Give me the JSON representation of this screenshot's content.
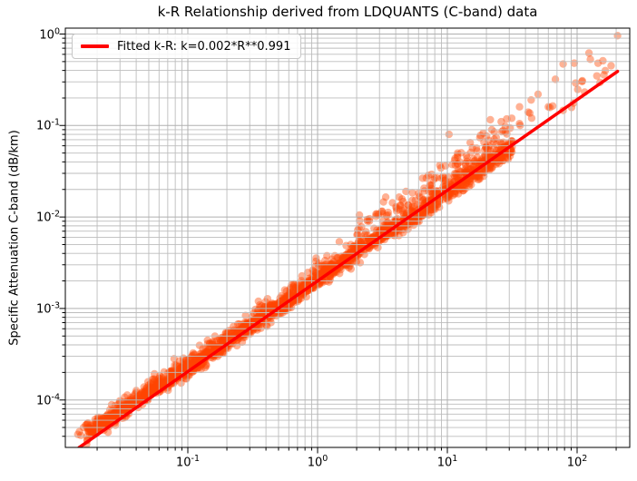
{
  "chart_data": {
    "type": "scatter",
    "title": "k-R Relationship derived from LDQUANTS (C-band) data",
    "xlabel": "",
    "ylabel": "Specific Attenuation C-band (dB/km)",
    "x_scale": "log",
    "y_scale": "log",
    "xlim": [
      0.0112,
      255
    ],
    "ylim": [
      3.03e-05,
      1.135
    ],
    "x_tick_exponents": [
      -1,
      0,
      1,
      2
    ],
    "y_tick_exponents": [
      0,
      -1,
      -2,
      -3,
      -4
    ],
    "grid": "both",
    "grid_major_color": "#b0b0b0",
    "grid_minor_color": "#bdbdbd",
    "frame_color": "#000000",
    "legend": {
      "label": "Fitted k-R: k=0.002*R**0.991",
      "line_color": "#ff0000",
      "position": "upper-left"
    },
    "fit": {
      "label_k": 0.002,
      "label_exponent": 0.991,
      "k": 0.002,
      "exponent": 0.991,
      "r_min": 0.0145,
      "r_max": 205,
      "color": "#ff0000",
      "linewidth": 3.5
    },
    "scatter": {
      "color": "#ff4500",
      "alpha": 0.42,
      "marker_radius": 4.2,
      "seed": 42,
      "n_points_approx": 2250,
      "band": {
        "n": 2200,
        "logx_min": -1.78,
        "logx_max": 1.5,
        "sigma": 0.048,
        "bias_left": 0.1,
        "bias_mid": 0.015,
        "bias_right": -0.022,
        "skew_prob_high": 0.3,
        "skew_prob_mid": 0.12,
        "skew_prob_low": 0.05,
        "skew_scale_high": 0.34,
        "skew_scale_low": 0.16,
        "residual_floor": -0.125
      },
      "tail": {
        "n": 22,
        "logx_min": 1.5,
        "logx_max": 2.33,
        "sigma": 0.07,
        "up_spread": 0.45
      },
      "low_points": [
        [
          0.0142,
          4.2e-05
        ],
        [
          0.0146,
          4.5e-05
        ],
        [
          0.015,
          4.1e-05
        ],
        [
          0.0157,
          5e-05
        ],
        [
          0.0163,
          5.3e-05
        ],
        [
          0.017,
          5.6e-05
        ]
      ],
      "outliers": [
        [
          205,
          0.96
        ],
        [
          158,
          0.51
        ],
        [
          95,
          0.48
        ],
        [
          78,
          0.47
        ],
        [
          68,
          0.32
        ],
        [
          60,
          0.16
        ],
        [
          50,
          0.22
        ],
        [
          42,
          0.14
        ],
        [
          36,
          0.16
        ],
        [
          36,
          0.105
        ],
        [
          28,
          0.085
        ],
        [
          26,
          0.11
        ],
        [
          22,
          0.09
        ],
        [
          18,
          0.078
        ],
        [
          15,
          0.065
        ],
        [
          12,
          0.05
        ],
        [
          10.3,
          0.08
        ],
        [
          3.35,
          0.0165
        ],
        [
          2.1,
          0.0105
        ],
        [
          0.35,
          0.0012
        ]
      ]
    }
  }
}
